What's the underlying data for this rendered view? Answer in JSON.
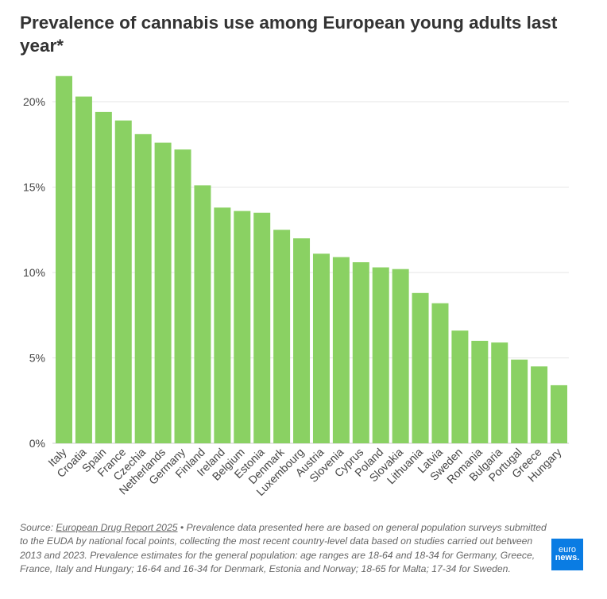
{
  "chart_data": {
    "type": "bar",
    "title": "Prevalence of cannabis use among European young adults last year*",
    "categories": [
      "Italy",
      "Croatia",
      "Spain",
      "France",
      "Czechia",
      "Netherlands",
      "Germany",
      "Finland",
      "Ireland",
      "Belgium",
      "Estonia",
      "Denmark",
      "Luxembourg",
      "Austria",
      "Slovenia",
      "Cyprus",
      "Poland",
      "Slovakia",
      "Lithuania",
      "Latvia",
      "Sweden",
      "Romania",
      "Bulgaria",
      "Portugal",
      "Greece",
      "Hungary"
    ],
    "values": [
      21.5,
      20.3,
      19.4,
      18.9,
      18.1,
      17.6,
      17.2,
      15.1,
      13.8,
      13.6,
      13.5,
      12.5,
      12.0,
      11.1,
      10.9,
      10.6,
      10.3,
      10.2,
      8.8,
      8.2,
      6.6,
      6.0,
      5.9,
      4.9,
      4.5,
      3.4
    ],
    "yticks": [
      "0%",
      "5%",
      "10%",
      "15%",
      "20%"
    ],
    "ylim": [
      0,
      22
    ],
    "grid": true,
    "bar_color": "#8ad163"
  },
  "footer": {
    "source_prefix": "Source: ",
    "source_link": "European Drug Report 2025",
    "note": " • Prevalence data presented here are based on general population surveys submitted to the EUDA by national focal points, collecting the most recent country-level data based on studies carried out between 2013 and 2023. Prevalence estimates for the general population: age ranges are 18-64 and 18-34 for Germany, Greece, France, Italy and Hungary; 16-64 and 16-34 for Denmark, Estonia and Norway; 18-65 for Malta; 17-34 for Sweden."
  },
  "logo": {
    "line1": "euro",
    "line2": "news."
  }
}
